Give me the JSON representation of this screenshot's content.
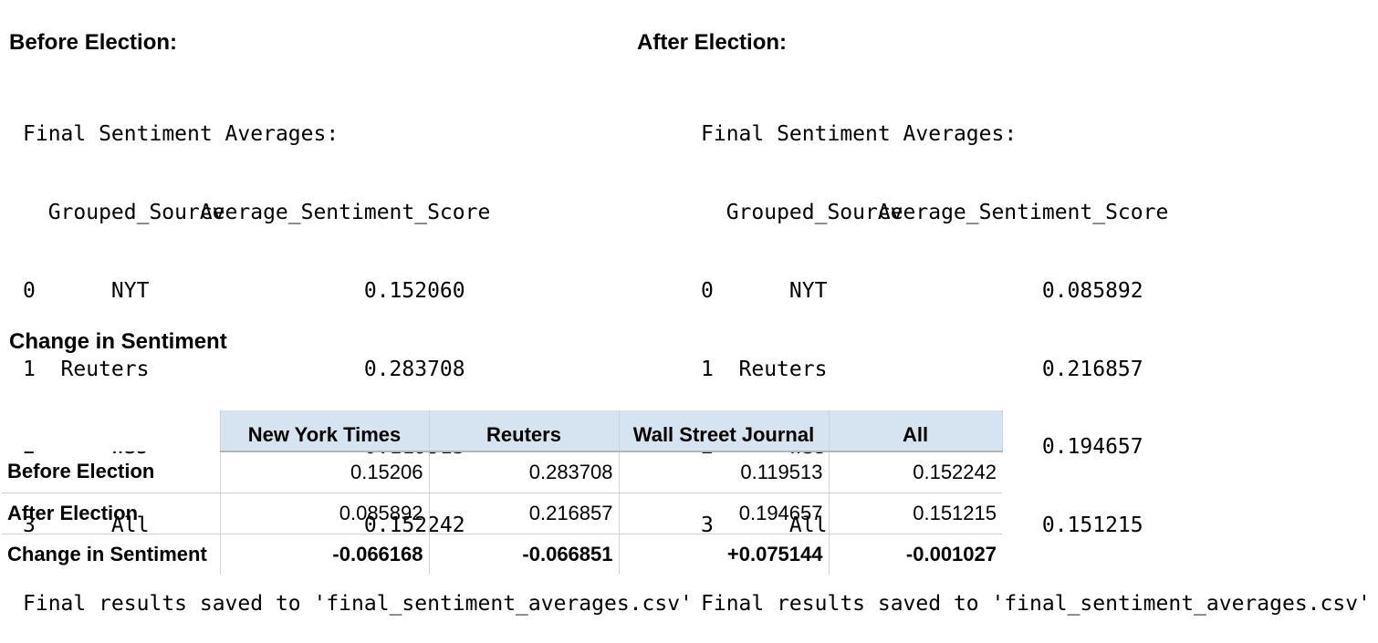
{
  "before": {
    "heading": "Before Election:",
    "title_line": "Final Sentiment Averages:",
    "col_source": "Grouped_Source",
    "col_score": "Average_Sentiment_Score",
    "rows": [
      {
        "idx": "0",
        "source": "NYT",
        "score": "0.152060"
      },
      {
        "idx": "1",
        "source": "Reuters",
        "score": "0.283708"
      },
      {
        "idx": "2",
        "source": "WSJ",
        "score": "0.119513"
      },
      {
        "idx": "3",
        "source": "All",
        "score": "0.152242"
      }
    ],
    "saved_line": "Final results saved to 'final_sentiment_averages.csv'"
  },
  "after": {
    "heading": "After Election:",
    "title_line": "Final Sentiment Averages:",
    "col_source": "Grouped_Source",
    "col_score": "Average_Sentiment_Score",
    "rows": [
      {
        "idx": "0",
        "source": "NYT",
        "score": "0.085892"
      },
      {
        "idx": "1",
        "source": "Reuters",
        "score": "0.216857"
      },
      {
        "idx": "2",
        "source": "WSJ",
        "score": "0.194657"
      },
      {
        "idx": "3",
        "source": "All",
        "score": "0.151215"
      }
    ],
    "saved_line": "Final results saved to 'final_sentiment_averages.csv'"
  },
  "change": {
    "heading": "Change in Sentiment",
    "columns": [
      "New York Times",
      "Reuters",
      "Wall Street Journal",
      "All"
    ],
    "rows": [
      {
        "label": "Before Election",
        "values": [
          "0.15206",
          "0.283708",
          "0.119513",
          "0.152242"
        ]
      },
      {
        "label": "After Election",
        "values": [
          "0.085892",
          "0.216857",
          "0.194657",
          "0.151215"
        ]
      },
      {
        "label": "Change in Sentiment",
        "values": [
          "-0.066168",
          "-0.066851",
          "+0.075144",
          "-0.001027"
        ]
      }
    ]
  },
  "colors": {
    "header_fill": "#d6e3f1",
    "text": "#000000"
  }
}
